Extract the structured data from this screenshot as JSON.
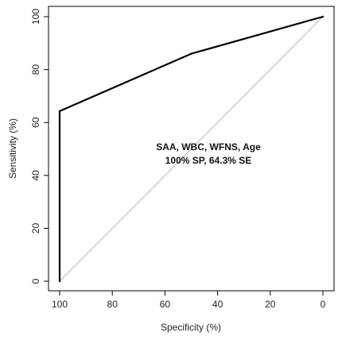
{
  "chart_data": {
    "type": "line",
    "title": "",
    "xlabel": "Specificity (%)",
    "ylabel": "Sensitivity (%)",
    "xlim": [
      100,
      0
    ],
    "ylim": [
      0,
      100
    ],
    "x_reversed": true,
    "x_ticks": [
      100,
      80,
      60,
      40,
      20,
      0
    ],
    "y_ticks": [
      0,
      20,
      40,
      60,
      80,
      100
    ],
    "x_tick_labels": [
      "100",
      "80",
      "60",
      "40",
      "20",
      "0"
    ],
    "y_tick_labels": [
      "0",
      "20",
      "40",
      "60",
      "80",
      "100"
    ],
    "grid": false,
    "series": [
      {
        "x": [
          100,
          100,
          50,
          0
        ],
        "y": [
          0,
          64.3,
          86,
          100
        ],
        "color": "#000000"
      }
    ],
    "reference_line": {
      "x": [
        100,
        0
      ],
      "y": [
        0,
        100
      ],
      "color": "#b5b5b5"
    },
    "annotations": [
      "SAA, WBC, WFNS, Age",
      "100% SP, 64.3% SE"
    ]
  }
}
